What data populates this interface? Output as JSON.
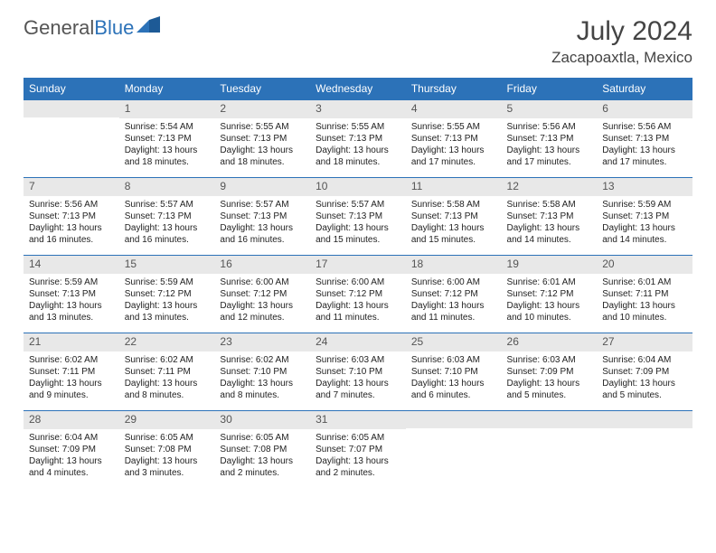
{
  "brand": {
    "part1": "General",
    "part2": "Blue"
  },
  "header": {
    "month_title": "July 2024",
    "location": "Zacapoaxtla, Mexico"
  },
  "colors": {
    "accent": "#2c72b8",
    "header_bg": "#2c72b8",
    "daynum_bg": "#e8e8e8",
    "text": "#333333"
  },
  "day_labels": [
    "Sunday",
    "Monday",
    "Tuesday",
    "Wednesday",
    "Thursday",
    "Friday",
    "Saturday"
  ],
  "weeks": [
    [
      {
        "num": "",
        "lines": [
          "",
          "",
          "",
          ""
        ]
      },
      {
        "num": "1",
        "lines": [
          "Sunrise: 5:54 AM",
          "Sunset: 7:13 PM",
          "Daylight: 13 hours",
          "and 18 minutes."
        ]
      },
      {
        "num": "2",
        "lines": [
          "Sunrise: 5:55 AM",
          "Sunset: 7:13 PM",
          "Daylight: 13 hours",
          "and 18 minutes."
        ]
      },
      {
        "num": "3",
        "lines": [
          "Sunrise: 5:55 AM",
          "Sunset: 7:13 PM",
          "Daylight: 13 hours",
          "and 18 minutes."
        ]
      },
      {
        "num": "4",
        "lines": [
          "Sunrise: 5:55 AM",
          "Sunset: 7:13 PM",
          "Daylight: 13 hours",
          "and 17 minutes."
        ]
      },
      {
        "num": "5",
        "lines": [
          "Sunrise: 5:56 AM",
          "Sunset: 7:13 PM",
          "Daylight: 13 hours",
          "and 17 minutes."
        ]
      },
      {
        "num": "6",
        "lines": [
          "Sunrise: 5:56 AM",
          "Sunset: 7:13 PM",
          "Daylight: 13 hours",
          "and 17 minutes."
        ]
      }
    ],
    [
      {
        "num": "7",
        "lines": [
          "Sunrise: 5:56 AM",
          "Sunset: 7:13 PM",
          "Daylight: 13 hours",
          "and 16 minutes."
        ]
      },
      {
        "num": "8",
        "lines": [
          "Sunrise: 5:57 AM",
          "Sunset: 7:13 PM",
          "Daylight: 13 hours",
          "and 16 minutes."
        ]
      },
      {
        "num": "9",
        "lines": [
          "Sunrise: 5:57 AM",
          "Sunset: 7:13 PM",
          "Daylight: 13 hours",
          "and 16 minutes."
        ]
      },
      {
        "num": "10",
        "lines": [
          "Sunrise: 5:57 AM",
          "Sunset: 7:13 PM",
          "Daylight: 13 hours",
          "and 15 minutes."
        ]
      },
      {
        "num": "11",
        "lines": [
          "Sunrise: 5:58 AM",
          "Sunset: 7:13 PM",
          "Daylight: 13 hours",
          "and 15 minutes."
        ]
      },
      {
        "num": "12",
        "lines": [
          "Sunrise: 5:58 AM",
          "Sunset: 7:13 PM",
          "Daylight: 13 hours",
          "and 14 minutes."
        ]
      },
      {
        "num": "13",
        "lines": [
          "Sunrise: 5:59 AM",
          "Sunset: 7:13 PM",
          "Daylight: 13 hours",
          "and 14 minutes."
        ]
      }
    ],
    [
      {
        "num": "14",
        "lines": [
          "Sunrise: 5:59 AM",
          "Sunset: 7:13 PM",
          "Daylight: 13 hours",
          "and 13 minutes."
        ]
      },
      {
        "num": "15",
        "lines": [
          "Sunrise: 5:59 AM",
          "Sunset: 7:12 PM",
          "Daylight: 13 hours",
          "and 13 minutes."
        ]
      },
      {
        "num": "16",
        "lines": [
          "Sunrise: 6:00 AM",
          "Sunset: 7:12 PM",
          "Daylight: 13 hours",
          "and 12 minutes."
        ]
      },
      {
        "num": "17",
        "lines": [
          "Sunrise: 6:00 AM",
          "Sunset: 7:12 PM",
          "Daylight: 13 hours",
          "and 11 minutes."
        ]
      },
      {
        "num": "18",
        "lines": [
          "Sunrise: 6:00 AM",
          "Sunset: 7:12 PM",
          "Daylight: 13 hours",
          "and 11 minutes."
        ]
      },
      {
        "num": "19",
        "lines": [
          "Sunrise: 6:01 AM",
          "Sunset: 7:12 PM",
          "Daylight: 13 hours",
          "and 10 minutes."
        ]
      },
      {
        "num": "20",
        "lines": [
          "Sunrise: 6:01 AM",
          "Sunset: 7:11 PM",
          "Daylight: 13 hours",
          "and 10 minutes."
        ]
      }
    ],
    [
      {
        "num": "21",
        "lines": [
          "Sunrise: 6:02 AM",
          "Sunset: 7:11 PM",
          "Daylight: 13 hours",
          "and 9 minutes."
        ]
      },
      {
        "num": "22",
        "lines": [
          "Sunrise: 6:02 AM",
          "Sunset: 7:11 PM",
          "Daylight: 13 hours",
          "and 8 minutes."
        ]
      },
      {
        "num": "23",
        "lines": [
          "Sunrise: 6:02 AM",
          "Sunset: 7:10 PM",
          "Daylight: 13 hours",
          "and 8 minutes."
        ]
      },
      {
        "num": "24",
        "lines": [
          "Sunrise: 6:03 AM",
          "Sunset: 7:10 PM",
          "Daylight: 13 hours",
          "and 7 minutes."
        ]
      },
      {
        "num": "25",
        "lines": [
          "Sunrise: 6:03 AM",
          "Sunset: 7:10 PM",
          "Daylight: 13 hours",
          "and 6 minutes."
        ]
      },
      {
        "num": "26",
        "lines": [
          "Sunrise: 6:03 AM",
          "Sunset: 7:09 PM",
          "Daylight: 13 hours",
          "and 5 minutes."
        ]
      },
      {
        "num": "27",
        "lines": [
          "Sunrise: 6:04 AM",
          "Sunset: 7:09 PM",
          "Daylight: 13 hours",
          "and 5 minutes."
        ]
      }
    ],
    [
      {
        "num": "28",
        "lines": [
          "Sunrise: 6:04 AM",
          "Sunset: 7:09 PM",
          "Daylight: 13 hours",
          "and 4 minutes."
        ]
      },
      {
        "num": "29",
        "lines": [
          "Sunrise: 6:05 AM",
          "Sunset: 7:08 PM",
          "Daylight: 13 hours",
          "and 3 minutes."
        ]
      },
      {
        "num": "30",
        "lines": [
          "Sunrise: 6:05 AM",
          "Sunset: 7:08 PM",
          "Daylight: 13 hours",
          "and 2 minutes."
        ]
      },
      {
        "num": "31",
        "lines": [
          "Sunrise: 6:05 AM",
          "Sunset: 7:07 PM",
          "Daylight: 13 hours",
          "and 2 minutes."
        ]
      },
      {
        "num": "",
        "lines": [
          "",
          "",
          "",
          ""
        ]
      },
      {
        "num": "",
        "lines": [
          "",
          "",
          "",
          ""
        ]
      },
      {
        "num": "",
        "lines": [
          "",
          "",
          "",
          ""
        ]
      }
    ]
  ]
}
